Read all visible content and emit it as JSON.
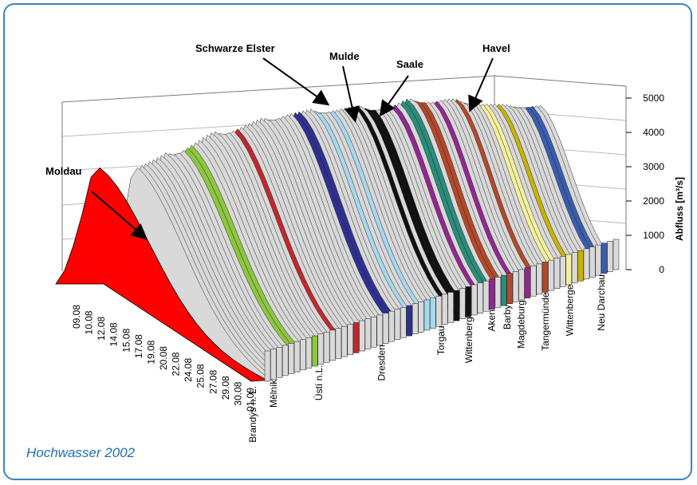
{
  "caption": "Hochwasser 2002",
  "chart_data": {
    "type": "area",
    "view": "3d-waterfall",
    "zlabel": "Abfluss  [m³/s]",
    "zticks": [
      0,
      1000,
      2000,
      3000,
      4000,
      5000
    ],
    "zlim": [
      0,
      5000
    ],
    "dates": [
      "09.08",
      "10.08",
      "12.08",
      "14.08",
      "15.08",
      "17.08",
      "19.08",
      "20.08",
      "22.08",
      "24.08",
      "25.08",
      "27.08",
      "29.08",
      "30.08",
      "01.09"
    ],
    "stations": [
      "Brandýs n. L.",
      "Mělník",
      "Ústí n.L.",
      "Dresden",
      "Torgau",
      "Wittenberg",
      "Aken",
      "Barby",
      "Magdeburg",
      "Tangermünde",
      "Wittenberge",
      "Neu Darchau"
    ],
    "stations_position_values": [
      0.0,
      0.06,
      0.19,
      0.37,
      0.54,
      0.62,
      0.685,
      0.73,
      0.77,
      0.84,
      0.91,
      1.0
    ],
    "peak_discharge_profile": [
      4000,
      4100,
      4500,
      4700,
      4500,
      4300,
      4400,
      4250,
      4200,
      3950,
      3700,
      3500
    ],
    "annotations": [
      {
        "label": "Moldau",
        "target": "Moldau"
      },
      {
        "label": "Schwarze Elster",
        "target": "Schwarze Elster"
      },
      {
        "label": "Mulde",
        "target": "Mulde"
      },
      {
        "label": "Saale",
        "target": "Saale"
      },
      {
        "label": "Havel",
        "target": "Havel"
      }
    ],
    "colors": {
      "moldau": "#ff0000",
      "surface": "#d9d9d9",
      "grid": "#222222",
      "band_green": "#8dc63f",
      "band_red": "#c1272d",
      "band_blue": "#2e3192",
      "band_lightblue": "#a6d8ee",
      "band_black": "#111111",
      "band_purple": "#93278f",
      "band_teal": "#2a8c7a",
      "band_yellow": "#f5f0a0",
      "band_darkblue": "#3a5dae",
      "band_brown": "#b5482a",
      "band_olive": "#c8b400"
    }
  }
}
